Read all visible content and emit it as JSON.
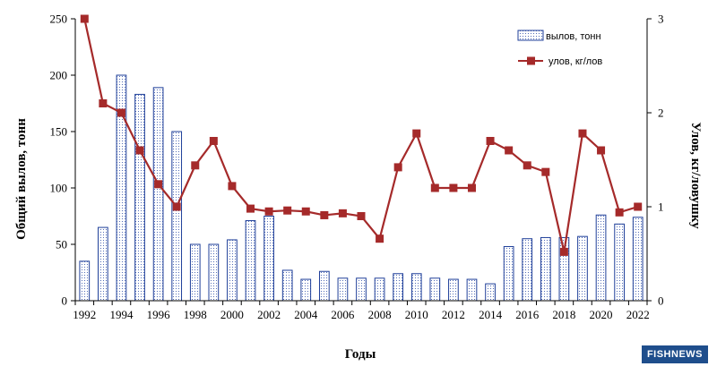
{
  "chart_data": {
    "type": "bar",
    "years": [
      1992,
      1993,
      1994,
      1995,
      1996,
      1997,
      1998,
      1999,
      2000,
      2001,
      2002,
      2003,
      2004,
      2005,
      2006,
      2007,
      2008,
      2009,
      2010,
      2011,
      2012,
      2013,
      2014,
      2015,
      2016,
      2017,
      2018,
      2019,
      2020,
      2021,
      2022
    ],
    "x_tick_labels": [
      "1992",
      "1994",
      "1996",
      "1998",
      "2000",
      "2002",
      "2004",
      "2006",
      "2008",
      "2010",
      "2012",
      "2014",
      "2016",
      "2018",
      "2020",
      "2022"
    ],
    "xlabel": "Годы",
    "ylabel_left": "Общий вылов, тонн",
    "ylabel_right": "Улов, кг/ловушку",
    "ylim_left": [
      0,
      250
    ],
    "ylim_right": [
      0,
      3
    ],
    "yticks_left": [
      0,
      50,
      100,
      150,
      200,
      250
    ],
    "yticks_right": [
      0,
      1,
      2,
      3
    ],
    "legend_position": "top-right",
    "series": [
      {
        "name": "вылов, тонн",
        "kind": "bar",
        "axis": "left",
        "color": "#1f3f99",
        "values": [
          35,
          65,
          200,
          183,
          189,
          150,
          50,
          50,
          54,
          71,
          75,
          27,
          19,
          26,
          20,
          20,
          20,
          24,
          24,
          20,
          19,
          19,
          15,
          48,
          55,
          56,
          56,
          57,
          76,
          68,
          74
        ]
      },
      {
        "name": "улов, кг/лов",
        "kind": "line",
        "axis": "right",
        "color": "#a52a2a",
        "values": [
          3.0,
          2.1,
          2.0,
          1.6,
          1.24,
          1.0,
          1.44,
          1.7,
          1.22,
          0.98,
          0.95,
          0.96,
          0.95,
          0.91,
          0.93,
          0.9,
          0.66,
          1.42,
          1.78,
          1.2,
          1.2,
          1.2,
          1.7,
          1.6,
          1.44,
          1.37,
          0.52,
          1.78,
          1.6,
          0.94,
          1.0
        ]
      }
    ]
  },
  "watermark": "FISHNEWS"
}
